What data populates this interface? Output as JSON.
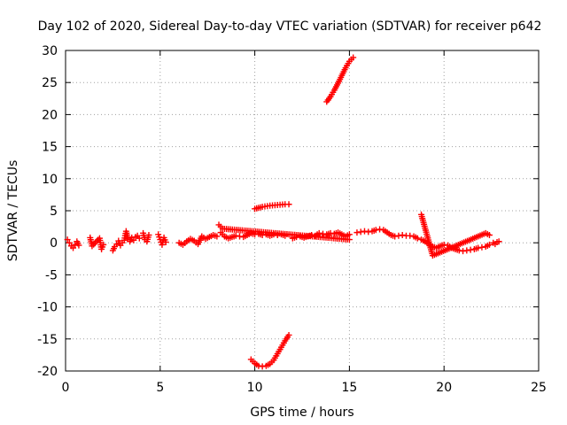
{
  "chart_data": {
    "type": "scatter",
    "title": "Day 102 of 2020, Sidereal Day-to-day VTEC variation (SDTVAR) for receiver p642",
    "xlabel": "GPS time / hours",
    "ylabel": "SDTVAR / TECUs",
    "xlim": [
      0,
      25
    ],
    "ylim": [
      -20,
      30
    ],
    "xticks": [
      "0",
      "5",
      "10",
      "15",
      "20",
      "25"
    ],
    "yticks": [
      "-20",
      "-15",
      "-10",
      "-5",
      "0",
      "5",
      "10",
      "15",
      "20",
      "25",
      "30"
    ],
    "grid": true,
    "marker": "plus",
    "color": "#ff0000",
    "series": [
      {
        "name": "",
        "segments": [
          [
            [
              0.1,
              0.5
            ],
            [
              0.2,
              0.0
            ],
            [
              0.3,
              -0.5
            ],
            [
              0.4,
              -0.8
            ],
            [
              0.5,
              -0.3
            ],
            [
              0.6,
              0.2
            ],
            [
              0.7,
              -0.4
            ]
          ],
          [
            [
              1.3,
              0.8
            ],
            [
              1.4,
              -0.5
            ],
            [
              1.8,
              0.7
            ],
            [
              1.9,
              -1.0
            ],
            [
              2.0,
              -0.3
            ]
          ],
          [
            [
              2.5,
              -1.2
            ],
            [
              2.6,
              -0.6
            ],
            [
              2.7,
              -0.2
            ],
            [
              2.8,
              0.3
            ],
            [
              2.9,
              -0.4
            ],
            [
              3.0,
              0.0
            ],
            [
              3.1,
              0.4
            ],
            [
              3.2,
              1.8
            ],
            [
              3.3,
              0.6
            ],
            [
              3.4,
              0.2
            ],
            [
              3.5,
              0.8
            ],
            [
              3.6,
              0.4
            ],
            [
              3.7,
              0.9
            ],
            [
              3.8,
              1.1
            ],
            [
              3.9,
              0.7
            ]
          ],
          [
            [
              4.1,
              1.5
            ],
            [
              4.2,
              0.5
            ],
            [
              4.3,
              0.2
            ],
            [
              4.4,
              1.2
            ]
          ],
          [
            [
              4.9,
              1.3
            ],
            [
              5.0,
              0.5
            ],
            [
              5.1,
              -0.3
            ],
            [
              5.2,
              0.8
            ],
            [
              5.3,
              0.1
            ]
          ],
          [
            [
              6.0,
              0.0
            ],
            [
              6.2,
              -0.3
            ],
            [
              6.4,
              0.2
            ],
            [
              6.6,
              0.6
            ],
            [
              6.8,
              0.3
            ],
            [
              7.0,
              -0.2
            ],
            [
              7.2,
              1.0
            ],
            [
              7.4,
              0.6
            ],
            [
              7.6,
              0.9
            ],
            [
              7.8,
              1.2
            ],
            [
              8.0,
              1.0
            ]
          ],
          [
            [
              8.2,
              1.6
            ],
            [
              8.4,
              1.0
            ],
            [
              8.6,
              0.7
            ],
            [
              8.8,
              0.9
            ],
            [
              9.0,
              1.1
            ],
            [
              9.2,
              1.0
            ],
            [
              9.4,
              0.9
            ],
            [
              9.6,
              1.2
            ],
            [
              9.8,
              1.5
            ],
            [
              10.0,
              1.3
            ],
            [
              10.2,
              1.4
            ],
            [
              10.4,
              1.2
            ],
            [
              10.6,
              1.3
            ],
            [
              10.8,
              1.1
            ],
            [
              11.0,
              1.3
            ],
            [
              11.2,
              1.2
            ],
            [
              11.4,
              1.3
            ],
            [
              11.6,
              1.1
            ]
          ],
          [
            [
              12.0,
              0.7
            ],
            [
              12.2,
              0.9
            ],
            [
              12.4,
              1.0
            ],
            [
              12.6,
              0.8
            ],
            [
              12.8,
              1.0
            ],
            [
              13.0,
              1.2
            ],
            [
              13.2,
              1.1
            ],
            [
              13.4,
              1.5
            ],
            [
              13.6,
              1.4
            ],
            [
              13.8,
              1.3
            ],
            [
              14.0,
              1.5
            ],
            [
              14.2,
              1.4
            ],
            [
              14.4,
              1.6
            ],
            [
              14.6,
              1.3
            ],
            [
              14.8,
              1.0
            ],
            [
              15.0,
              1.3
            ]
          ],
          [
            [
              15.4,
              1.6
            ],
            [
              15.6,
              1.7
            ],
            [
              15.8,
              1.8
            ],
            [
              16.0,
              1.7
            ],
            [
              16.2,
              1.8
            ],
            [
              16.4,
              2.0
            ],
            [
              16.6,
              2.1
            ],
            [
              16.8,
              2.0
            ],
            [
              17.0,
              1.6
            ],
            [
              17.2,
              1.2
            ],
            [
              17.4,
              1.0
            ],
            [
              17.6,
              1.1
            ],
            [
              17.8,
              1.2
            ],
            [
              18.0,
              1.1
            ],
            [
              18.2,
              1.1
            ],
            [
              18.4,
              1.0
            ],
            [
              18.6,
              0.7
            ]
          ],
          [
            [
              18.8,
              0.5
            ],
            [
              19.0,
              0.2
            ],
            [
              19.2,
              -0.2
            ],
            [
              19.4,
              -0.6
            ],
            [
              19.6,
              -0.8
            ],
            [
              19.8,
              -0.5
            ],
            [
              20.0,
              -0.3
            ],
            [
              20.2,
              -0.4
            ],
            [
              20.4,
              -0.8
            ],
            [
              20.6,
              -1.0
            ],
            [
              20.8,
              -1.2
            ],
            [
              21.0,
              -1.3
            ],
            [
              21.2,
              -1.2
            ],
            [
              21.4,
              -1.1
            ],
            [
              21.6,
              -1.0
            ],
            [
              21.8,
              -0.8
            ],
            [
              22.0,
              -0.7
            ],
            [
              22.2,
              -0.6
            ],
            [
              22.4,
              -0.3
            ]
          ],
          [
            [
              22.6,
              0.0
            ],
            [
              22.7,
              -0.2
            ],
            [
              22.8,
              0.1
            ],
            [
              22.9,
              0.2
            ]
          ],
          [
            [
              10.0,
              5.3
            ],
            [
              10.4,
              5.6
            ],
            [
              10.8,
              5.8
            ],
            [
              11.2,
              5.9
            ],
            [
              11.6,
              6.0
            ],
            [
              11.8,
              6.0
            ]
          ],
          [
            [
              9.8,
              -18.2
            ],
            [
              10.0,
              -18.8
            ],
            [
              10.2,
              -19.2
            ],
            [
              10.4,
              -19.3
            ],
            [
              10.6,
              -19.2
            ],
            [
              10.8,
              -18.9
            ],
            [
              11.0,
              -18.3
            ],
            [
              11.2,
              -17.3
            ],
            [
              11.4,
              -16.3
            ],
            [
              11.6,
              -15.3
            ],
            [
              11.8,
              -14.4
            ]
          ],
          [
            [
              13.8,
              22.0
            ],
            [
              14.0,
              22.8
            ],
            [
              14.2,
              23.8
            ],
            [
              14.4,
              24.9
            ],
            [
              14.6,
              26.1
            ],
            [
              14.8,
              27.3
            ],
            [
              15.0,
              28.3
            ],
            [
              15.2,
              28.9
            ]
          ],
          [
            [
              8.1,
              2.8
            ],
            [
              8.3,
              2.2
            ],
            [
              15.0,
              0.5
            ]
          ],
          [
            [
              18.8,
              4.4
            ],
            [
              19.4,
              -2.0
            ],
            [
              22.2,
              1.5
            ],
            [
              22.4,
              1.2
            ]
          ]
        ]
      }
    ]
  }
}
